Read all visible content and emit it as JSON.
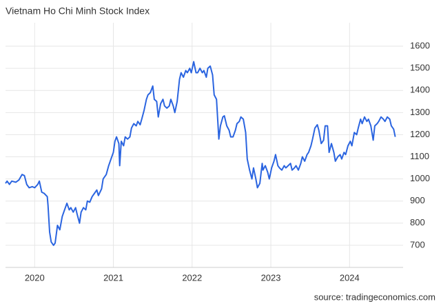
{
  "chart_data": {
    "type": "line",
    "title": "Vietnam Ho Chi Minh Stock Index",
    "source": "source: tradingeconomics.com",
    "color": "#2a64e0",
    "grid": true,
    "y_axis_side": "right",
    "xlim": [
      2019.63,
      2024.68
    ],
    "xticks": [
      2020,
      2021,
      2022,
      2023,
      2024
    ],
    "ylim": [
      600,
      1706
    ],
    "yticks": [
      700,
      800,
      900,
      1000,
      1100,
      1200,
      1300,
      1400,
      1500,
      1600
    ],
    "x": [
      2019.63,
      2019.65,
      2019.68,
      2019.71,
      2019.76,
      2019.8,
      2019.84,
      2019.87,
      2019.9,
      2019.93,
      2019.97,
      2020.0,
      2020.04,
      2020.06,
      2020.09,
      2020.12,
      2020.16,
      2020.17,
      2020.19,
      2020.21,
      2020.24,
      2020.26,
      2020.29,
      2020.32,
      2020.35,
      2020.38,
      2020.41,
      2020.44,
      2020.46,
      2020.49,
      2020.52,
      2020.54,
      2020.57,
      2020.59,
      2020.62,
      2020.65,
      2020.67,
      2020.7,
      2020.73,
      2020.76,
      2020.79,
      2020.81,
      2020.85,
      2020.87,
      2020.91,
      2020.94,
      2020.97,
      2021.0,
      2021.02,
      2021.04,
      2021.07,
      2021.08,
      2021.1,
      2021.13,
      2021.15,
      2021.18,
      2021.21,
      2021.23,
      2021.26,
      2021.29,
      2021.31,
      2021.34,
      2021.36,
      2021.39,
      2021.42,
      2021.44,
      2021.47,
      2021.5,
      2021.52,
      2021.55,
      2021.57,
      2021.6,
      2021.63,
      2021.65,
      2021.68,
      2021.71,
      2021.73,
      2021.76,
      2021.78,
      2021.81,
      2021.84,
      2021.86,
      2021.89,
      2021.92,
      2021.94,
      2021.97,
      2021.99,
      2022.02,
      2022.05,
      2022.07,
      2022.1,
      2022.13,
      2022.15,
      2022.18,
      2022.2,
      2022.23,
      2022.26,
      2022.28,
      2022.31,
      2022.34,
      2022.36,
      2022.39,
      2022.41,
      2022.44,
      2022.47,
      2022.49,
      2022.52,
      2022.55,
      2022.57,
      2022.6,
      2022.62,
      2022.65,
      2022.68,
      2022.7,
      2022.73,
      2022.76,
      2022.78,
      2022.81,
      2022.83,
      2022.86,
      2022.89,
      2022.9,
      2022.93,
      2022.96,
      2022.98,
      2023.01,
      2023.04,
      2023.06,
      2023.09,
      2023.11,
      2023.14,
      2023.17,
      2023.19,
      2023.22,
      2023.25,
      2023.27,
      2023.3,
      2023.32,
      2023.35,
      2023.38,
      2023.4,
      2023.43,
      2023.46,
      2023.48,
      2023.51,
      2023.53,
      2023.56,
      2023.59,
      2023.61,
      2023.64,
      2023.67,
      2023.69,
      2023.72,
      2023.74,
      2023.77,
      2023.8,
      2023.82,
      2023.85,
      2023.88,
      2023.9,
      2023.93,
      2023.95,
      2023.98,
      2024.01,
      2024.03,
      2024.06,
      2024.09,
      2024.11,
      2024.14,
      2024.16,
      2024.19,
      2024.22,
      2024.24,
      2024.27,
      2024.3,
      2024.32,
      2024.35,
      2024.37,
      2024.4,
      2024.43,
      2024.45,
      2024.48,
      2024.51,
      2024.53,
      2024.56,
      2024.58
    ],
    "values": [
      980,
      990,
      975,
      990,
      985,
      995,
      1020,
      1015,
      975,
      960,
      965,
      960,
      975,
      990,
      940,
      935,
      920,
      880,
      760,
      715,
      700,
      710,
      790,
      770,
      830,
      860,
      890,
      860,
      870,
      850,
      870,
      840,
      800,
      850,
      870,
      860,
      900,
      895,
      920,
      935,
      950,
      925,
      955,
      1000,
      1020,
      1060,
      1090,
      1120,
      1170,
      1190,
      1160,
      1060,
      1170,
      1150,
      1190,
      1180,
      1190,
      1230,
      1250,
      1240,
      1260,
      1245,
      1270,
      1310,
      1360,
      1380,
      1390,
      1420,
      1360,
      1350,
      1280,
      1340,
      1360,
      1330,
      1320,
      1330,
      1360,
      1330,
      1300,
      1350,
      1450,
      1480,
      1460,
      1490,
      1480,
      1500,
      1480,
      1530,
      1480,
      1480,
      1500,
      1480,
      1490,
      1460,
      1500,
      1510,
      1470,
      1380,
      1360,
      1180,
      1240,
      1280,
      1285,
      1240,
      1220,
      1190,
      1190,
      1220,
      1250,
      1260,
      1280,
      1270,
      1210,
      1090,
      1040,
      1000,
      1050,
      1000,
      960,
      980,
      1070,
      1040,
      1060,
      1030,
      1000,
      1050,
      1080,
      1110,
      1060,
      1050,
      1040,
      1060,
      1050,
      1060,
      1070,
      1040,
      1050,
      1060,
      1040,
      1070,
      1100,
      1080,
      1110,
      1120,
      1150,
      1180,
      1230,
      1245,
      1220,
      1160,
      1175,
      1240,
      1240,
      1120,
      1160,
      1120,
      1080,
      1100,
      1110,
      1090,
      1120,
      1110,
      1150,
      1170,
      1150,
      1210,
      1200,
      1230,
      1270,
      1250,
      1280,
      1260,
      1270,
      1240,
      1175,
      1240,
      1250,
      1260,
      1280,
      1270,
      1260,
      1280,
      1270,
      1240,
      1225,
      1190
    ]
  }
}
